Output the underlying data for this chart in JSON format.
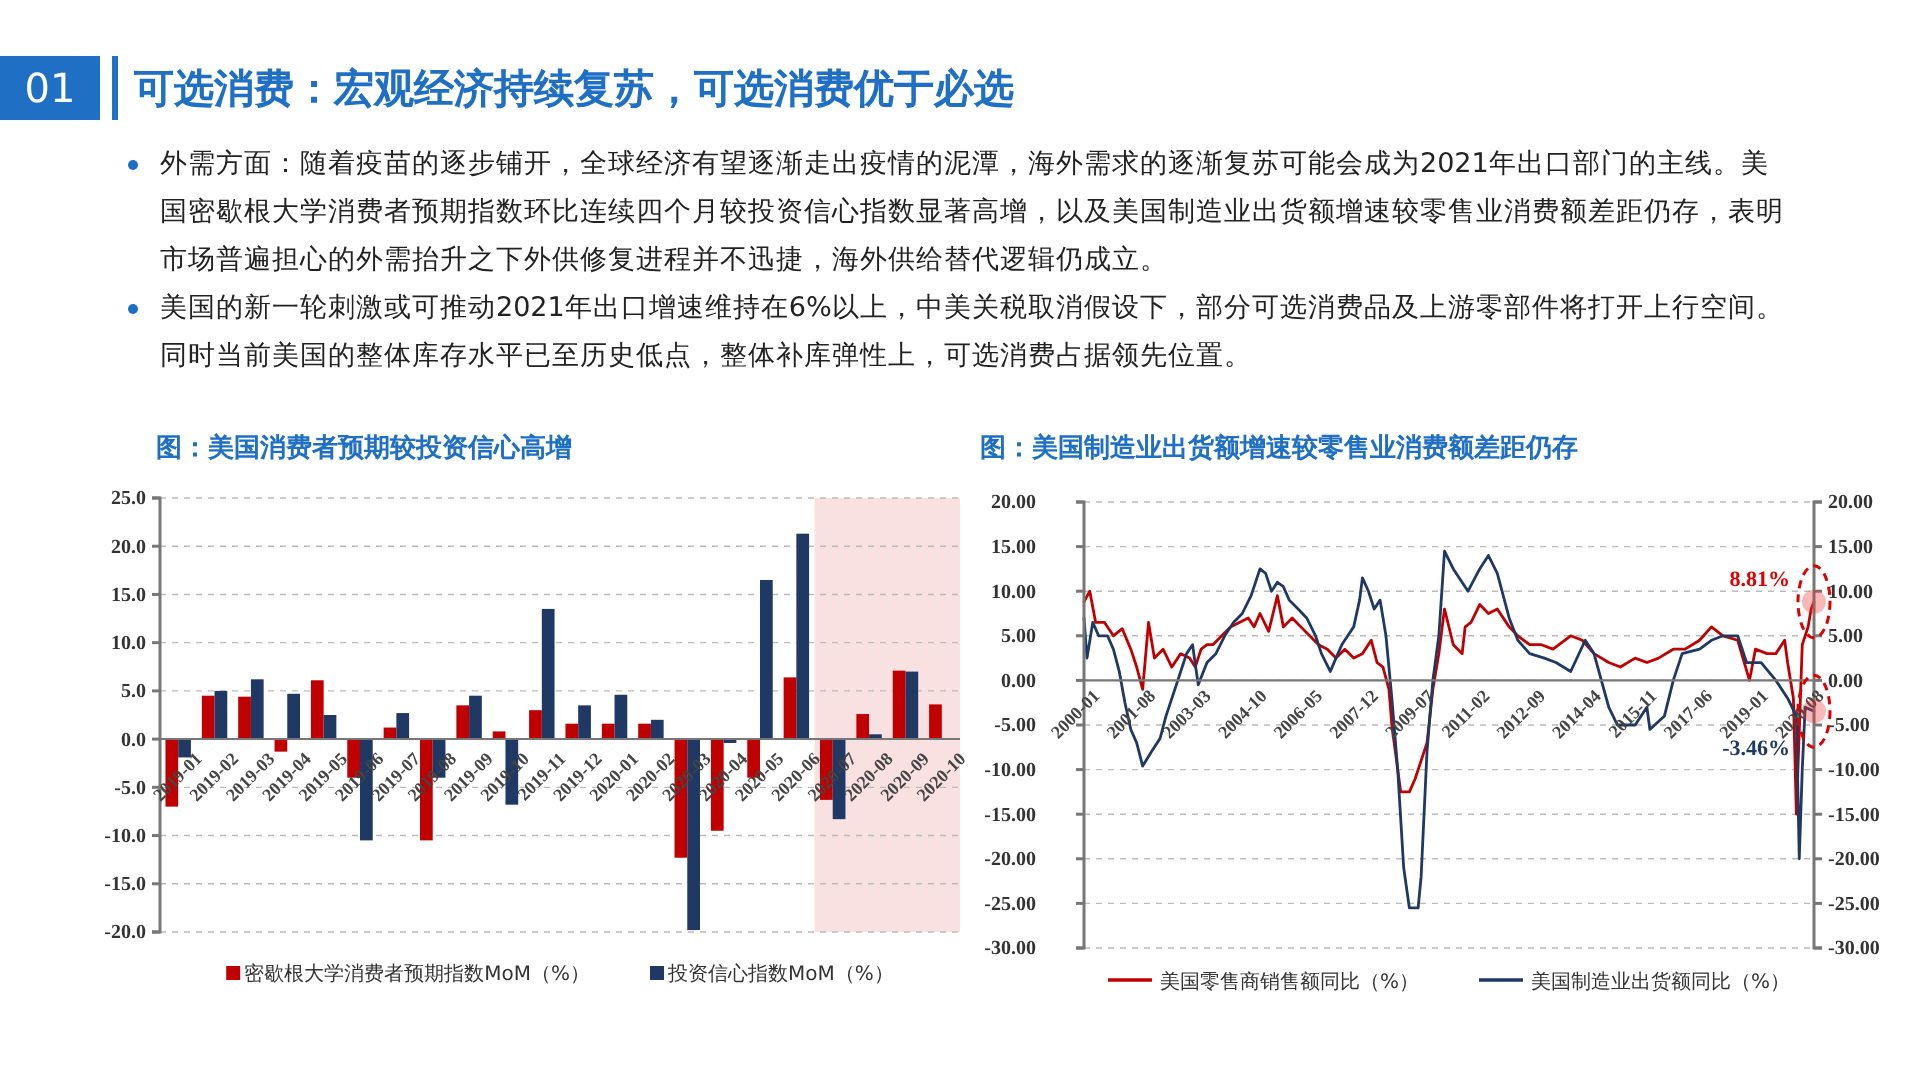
{
  "chart_data": [
    {
      "type": "other",
      "title": "可选消费：宏观经济持续复苏，可选消费优于必选",
      "annotations": [
        "01",
        "外需方面：随着疫苗的逐步铺开，全球经济有望逐渐走出疫情的泥潭，海外需求的逐渐复苏可能会成为2021年出口部门的主线。美国密歇根大学消费者预期指数环比连续四个月较投资信心指数显著高增，以及美国制造业出货额增速较零售业消费额差距仍存，表明市场普遍担心的外需抬升之下外供修复进程并不迅捷，海外供给替代逻辑仍成立。",
        "美国的新一轮刺激或可推动2021年出口增速维持在6%以上，中美关税取消假设下，部分可选消费品及上游零部件将打开上行空间。同时当前美国的整体库存水平已至历史低点，整体补库弹性上，可选消费占据领先位置。"
      ]
    },
    {
      "type": "bar",
      "title": "图：美国消费者预期较投资信心高增",
      "categories": [
        "2019-01",
        "2019-02",
        "2019-03",
        "2019-04",
        "2019-05",
        "2019-06",
        "2019-07",
        "2019-08",
        "2019-09",
        "2019-10",
        "2019-11",
        "2019-12",
        "2020-01",
        "2020-02",
        "2020-03",
        "2020-04",
        "2020-05",
        "2020-06",
        "2020-07",
        "2020-08",
        "2020-09",
        "2020-10"
      ],
      "series": [
        {
          "name": "密歇根大学消费者预期指数MoM（%）",
          "color": "#c00000",
          "values": [
            -7.0,
            4.5,
            4.4,
            -1.3,
            6.1,
            -4.0,
            1.2,
            -10.5,
            3.5,
            0.8,
            3.0,
            1.6,
            1.6,
            1.6,
            -12.3,
            -9.5,
            -4.0,
            6.4,
            -6.3,
            2.6,
            7.1,
            3.6
          ]
        },
        {
          "name": "投资信心指数MoM（%）",
          "color": "#1f3864",
          "values": [
            -1.9,
            5.0,
            6.2,
            4.7,
            2.5,
            -10.5,
            2.7,
            -4.0,
            4.5,
            -6.8,
            13.5,
            3.5,
            4.6,
            2.0,
            -19.8,
            -0.4,
            16.5,
            21.3,
            -8.3,
            0.5,
            7.0,
            null
          ]
        }
      ],
      "ylim": [
        -20,
        25
      ],
      "yticks": [
        {
          "value": -20,
          "label": "-20.0"
        },
        {
          "value": -15,
          "label": "-15.0"
        },
        {
          "value": -10,
          "label": "-10.0"
        },
        {
          "value": -5,
          "label": "-5.0"
        },
        {
          "value": 0,
          "label": "0.0"
        },
        {
          "value": 5,
          "label": "5.0"
        },
        {
          "value": 10,
          "label": "10.0"
        },
        {
          "value": 15,
          "label": "15.0"
        },
        {
          "value": 20,
          "label": "20.0"
        },
        {
          "value": 25,
          "label": "25.0"
        }
      ],
      "bands": [
        {
          "axis": "x",
          "from": "2020-07",
          "to": "2020-10",
          "color": "#f9e1e1"
        }
      ],
      "grid": "y",
      "legend": "bottom"
    },
    {
      "type": "line",
      "title": "图：美国制造业出货额增速较零售业消费额差距仍存",
      "series": [
        {
          "name": "美国零售商销售额同比（%）",
          "color": "#c00000",
          "x": [
            "2000-01",
            "2000-03",
            "2000-05",
            "2000-08",
            "2000-11",
            "2001-02",
            "2001-05",
            "2001-07",
            "2001-09",
            "2001-11",
            "2002-01",
            "2002-04",
            "2002-07",
            "2002-10",
            "2003-01",
            "2003-03",
            "2003-05",
            "2003-07",
            "2003-09",
            "2003-12",
            "2004-03",
            "2004-06",
            "2004-09",
            "2004-11",
            "2005-01",
            "2005-04",
            "2005-07",
            "2005-09",
            "2005-12",
            "2006-03",
            "2006-06",
            "2006-09",
            "2006-12",
            "2007-03",
            "2007-06",
            "2007-09",
            "2007-12",
            "2008-03",
            "2008-05",
            "2008-07",
            "2008-09",
            "2008-10",
            "2008-12",
            "2009-01",
            "2009-04",
            "2009-06",
            "2009-08",
            "2009-10",
            "2009-12",
            "2010-02",
            "2010-04",
            "2010-07",
            "2010-10",
            "2010-11",
            "2011-01",
            "2011-04",
            "2011-07",
            "2011-10",
            "2012-02",
            "2012-05",
            "2012-09",
            "2013-01",
            "2013-05",
            "2013-11",
            "2014-03",
            "2014-07",
            "2014-12",
            "2015-04",
            "2015-09",
            "2016-01",
            "2016-05",
            "2016-10",
            "2017-02",
            "2017-07",
            "2017-11",
            "2018-03",
            "2018-08",
            "2018-12",
            "2019-02",
            "2019-06",
            "2019-09",
            "2019-12",
            "2020-01",
            "2020-03",
            "2020-04",
            "2020-06",
            "2020-08",
            "2020-09",
            "2020-10"
          ],
          "values": [
            8.8,
            10,
            6.5,
            6.5,
            5,
            5.8,
            3.5,
            1.5,
            -1,
            6.5,
            2.5,
            3.5,
            1.5,
            3,
            2.5,
            1.5,
            3.5,
            4,
            4,
            5,
            6,
            6.5,
            7,
            6,
            7.5,
            5.5,
            9.5,
            6,
            7,
            6,
            5,
            4,
            3.5,
            2.5,
            3.5,
            2.5,
            3,
            4.5,
            2,
            1.5,
            -1,
            -5,
            -10,
            -12.5,
            -12.5,
            -11,
            -9,
            -7,
            -1,
            3,
            8,
            4,
            3,
            6,
            6.5,
            8.5,
            7.5,
            8,
            6,
            5,
            4,
            4,
            3.5,
            5,
            4.5,
            3,
            2,
            1.5,
            2.5,
            2,
            2.5,
            3.5,
            3.5,
            4.5,
            6,
            5,
            4.5,
            0,
            3.5,
            3,
            3,
            4.5,
            2,
            -2,
            -15,
            4,
            6,
            8,
            8.81
          ]
        },
        {
          "name": "美国制造业出货额同比（%）",
          "color": "#1f3864",
          "x": [
            "2000-01",
            "2000-02",
            "2000-04",
            "2000-06",
            "2000-09",
            "2000-11",
            "2001-01",
            "2001-03",
            "2001-05",
            "2001-07",
            "2001-09",
            "2001-12",
            "2002-03",
            "2002-05",
            "2002-08",
            "2002-10",
            "2002-12",
            "2003-02",
            "2003-04",
            "2003-07",
            "2003-10",
            "2004-01",
            "2004-04",
            "2004-07",
            "2004-10",
            "2005-01",
            "2005-03",
            "2005-05",
            "2005-07",
            "2005-09",
            "2005-11",
            "2006-02",
            "2006-05",
            "2006-08",
            "2006-10",
            "2007-01",
            "2007-03",
            "2007-05",
            "2007-07",
            "2007-09",
            "2007-11",
            "2007-12",
            "2008-02",
            "2008-04",
            "2008-06",
            "2008-08",
            "2008-10",
            "2008-12",
            "2009-02",
            "2009-04",
            "2009-07",
            "2009-08",
            "2009-10",
            "2009-12",
            "2010-02",
            "2010-04",
            "2010-07",
            "2010-12",
            "2011-04",
            "2011-07",
            "2011-10",
            "2012-02",
            "2012-05",
            "2012-09",
            "2013-02",
            "2013-06",
            "2013-11",
            "2014-04",
            "2014-07",
            "2014-12",
            "2015-03",
            "2015-09",
            "2016-01",
            "2016-02",
            "2016-07",
            "2016-10",
            "2017-01",
            "2017-07",
            "2017-11",
            "2018-03",
            "2018-08",
            "2018-11",
            "2019-04",
            "2019-09",
            "2020-01",
            "2020-04",
            "2020-05",
            "2020-06",
            "2020-07",
            "2020-10"
          ],
          "values": [
            7,
            2.5,
            6.5,
            5,
            5,
            3.5,
            1,
            -2.5,
            -5.5,
            -7,
            -9.6,
            -8,
            -6.5,
            -4,
            -1,
            1,
            3,
            4,
            -0.5,
            2,
            3,
            5,
            6.5,
            7.5,
            9.5,
            12.5,
            12,
            10,
            11,
            10.5,
            9,
            8,
            7,
            5,
            3,
            1,
            2.5,
            4,
            5,
            6,
            9,
            11.5,
            10,
            8,
            9,
            5,
            -2,
            -10,
            -21,
            -25.5,
            -25.5,
            -22,
            -8,
            0,
            5,
            14.5,
            12.5,
            10,
            12.5,
            14,
            12,
            7,
            4.5,
            3,
            2.5,
            2,
            1,
            4.5,
            3,
            -3,
            -5,
            -5,
            -3,
            -5.5,
            -4,
            0,
            3,
            3.5,
            4.5,
            5,
            5,
            2,
            2,
            0,
            -2,
            -4,
            -20,
            -10,
            -3,
            -3.46
          ]
        }
      ],
      "xlim": [
        "2000-01",
        "2020-10"
      ],
      "xticks": [
        "2000-01",
        "2001-08",
        "2003-03",
        "2004-10",
        "2006-05",
        "2007-12",
        "2009-07",
        "2011-02",
        "2012-09",
        "2014-04",
        "2015-11",
        "2017-06",
        "2019-01",
        "2020-08"
      ],
      "ylim": [
        -30,
        20
      ],
      "yticks": [
        {
          "value": -30,
          "label": "-30.00"
        },
        {
          "value": -25,
          "label": "-25.00"
        },
        {
          "value": -20,
          "label": "-20.00"
        },
        {
          "value": -15,
          "label": "-15.00"
        },
        {
          "value": -10,
          "label": "-10.00"
        },
        {
          "value": -5,
          "label": "-5.00"
        },
        {
          "value": 0,
          "label": "0.00"
        },
        {
          "value": 5,
          "label": "5.00"
        },
        {
          "value": 10,
          "label": "10.00"
        },
        {
          "value": 15,
          "label": "15.00"
        },
        {
          "value": 20,
          "label": "20.00"
        }
      ],
      "y2lim": [
        -30,
        20
      ],
      "y2ticks": [
        {
          "value": -30,
          "label": "-30.00"
        },
        {
          "value": -25,
          "label": "-25.00"
        },
        {
          "value": -20,
          "label": "-20.00"
        },
        {
          "value": -15,
          "label": "-15.00"
        },
        {
          "value": -10,
          "label": "-10.00"
        },
        {
          "value": -5,
          "label": "-5.00"
        },
        {
          "value": 0,
          "label": "0.00"
        },
        {
          "value": 5,
          "label": "5.00"
        },
        {
          "value": 10,
          "label": "10.00"
        },
        {
          "value": 15,
          "label": "15.00"
        },
        {
          "value": 20,
          "label": "20.00"
        }
      ],
      "annotations": [
        {
          "text": "8.81%",
          "x": "2020-10",
          "y": 8.81
        },
        {
          "text": "-3.46%",
          "x": "2020-10",
          "y": -3.46
        }
      ],
      "grid": "y",
      "legend": "bottom",
      "marker": "none",
      "line_style": "solid"
    }
  ]
}
